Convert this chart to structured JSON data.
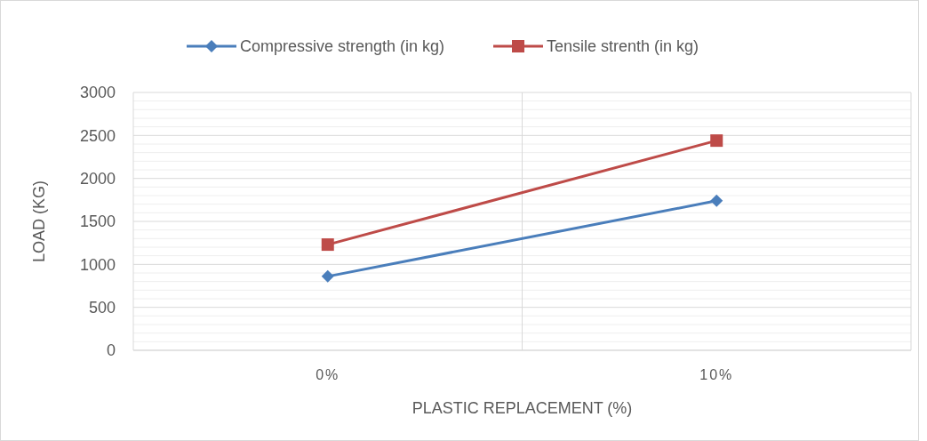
{
  "chart_data": {
    "type": "line",
    "xlabel": "PLASTIC REPLACEMENT (%)",
    "ylabel": "LOAD (KG)",
    "categories": [
      "0%",
      "10%"
    ],
    "series": [
      {
        "name": "Compressive strength (in kg)",
        "color": "#4a7ebb",
        "marker": "diamond",
        "values": [
          860,
          1740
        ]
      },
      {
        "name": "Tensile strenth (in kg)",
        "color": "#be4b48",
        "marker": "square",
        "values": [
          1230,
          2440
        ]
      }
    ],
    "ylim": [
      0,
      3000
    ],
    "yticks": [
      0,
      {
        "value": 100,
        "label": null
      },
      {
        "value": 200,
        "label": null
      },
      {
        "value": 300,
        "label": null
      },
      {
        "value": 400,
        "label": null
      },
      500,
      {
        "value": 600,
        "label": null
      },
      {
        "value": 700,
        "label": null
      },
      {
        "value": 800,
        "label": null
      },
      {
        "value": 900,
        "label": null
      },
      1000,
      {
        "value": 1100,
        "label": null
      },
      {
        "value": 1200,
        "label": null
      },
      {
        "value": 1300,
        "label": null
      },
      {
        "value": 1400,
        "label": null
      },
      1500,
      {
        "value": 1600,
        "label": null
      },
      {
        "value": 1700,
        "label": null
      },
      {
        "value": 1800,
        "label": null
      },
      {
        "value": 1900,
        "label": null
      },
      2000,
      {
        "value": 2100,
        "label": null
      },
      {
        "value": 2200,
        "label": null
      },
      {
        "value": 2300,
        "label": null
      },
      {
        "value": 2400,
        "label": null
      },
      2500,
      {
        "value": 2600,
        "label": null
      },
      {
        "value": 2700,
        "label": null
      },
      {
        "value": 2800,
        "label": null
      },
      {
        "value": 2900,
        "label": null
      },
      3000
    ],
    "grid": true,
    "legend": "top",
    "line_style": "solid"
  }
}
